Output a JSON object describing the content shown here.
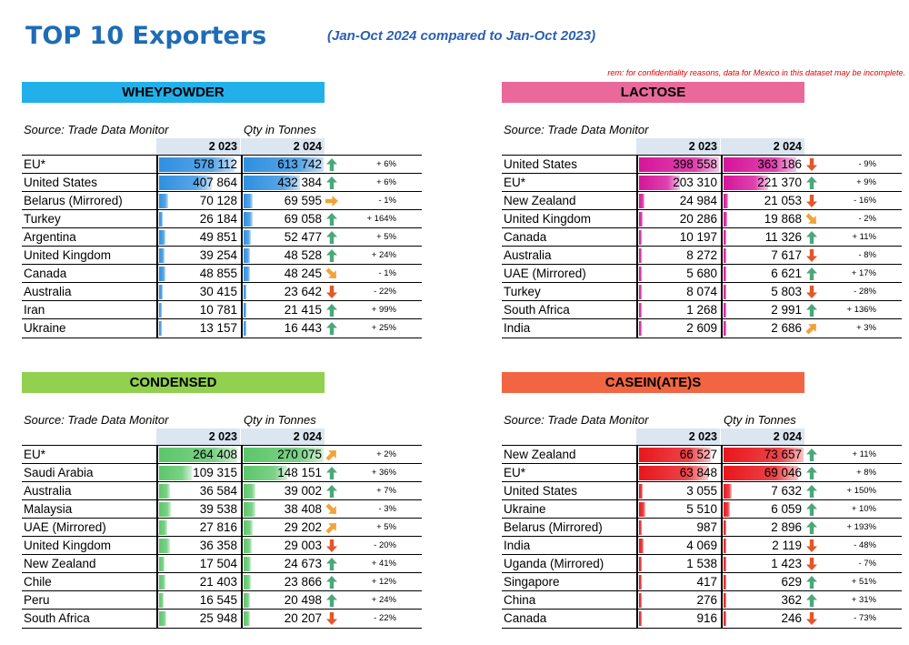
{
  "title": "TOP 10 Exporters",
  "subtitle": "(Jan-Oct 2024 compared to Jan-Oct 2023)",
  "rem": "rem:  for confidentiality reasons, data for Mexico in this dataset may be incomplete.",
  "chart_data": [
    {
      "type": "table",
      "title": "WHEYPOWDER",
      "source": "Source: Trade Data Monitor",
      "unit": "Qty in Tonnes",
      "header_color": "#22b0ea",
      "bar_color": "#2f8fe0",
      "years": [
        "2 023",
        "2 024"
      ],
      "rows": [
        {
          "country": "EU*",
          "v2023": 578112,
          "v2024": 613742,
          "l2023": "578 112",
          "l2024": "613 742",
          "trend": "up",
          "change": "+ 6%"
        },
        {
          "country": "United States",
          "v2023": 407864,
          "v2024": 432384,
          "l2023": "407 864",
          "l2024": "432 384",
          "trend": "up",
          "change": "+ 6%"
        },
        {
          "country": "Belarus (Mirrored)",
          "v2023": 70128,
          "v2024": 69595,
          "l2023": "70 128",
          "l2024": "69 595",
          "trend": "flat",
          "change": "- 1%"
        },
        {
          "country": "Turkey",
          "v2023": 26184,
          "v2024": 69058,
          "l2023": "26 184",
          "l2024": "69 058",
          "trend": "up",
          "change": "+ 164%"
        },
        {
          "country": "Argentina",
          "v2023": 49851,
          "v2024": 52477,
          "l2023": "49 851",
          "l2024": "52 477",
          "trend": "up",
          "change": "+ 5%"
        },
        {
          "country": "United Kingdom",
          "v2023": 39254,
          "v2024": 48528,
          "l2023": "39 254",
          "l2024": "48 528",
          "trend": "up",
          "change": "+ 24%"
        },
        {
          "country": "Canada",
          "v2023": 48855,
          "v2024": 48245,
          "l2023": "48 855",
          "l2024": "48 245",
          "trend": "downslight",
          "change": "- 1%"
        },
        {
          "country": "Australia",
          "v2023": 30415,
          "v2024": 23642,
          "l2023": "30 415",
          "l2024": "23 642",
          "trend": "down",
          "change": "- 22%"
        },
        {
          "country": "Iran",
          "v2023": 10781,
          "v2024": 21415,
          "l2023": "10 781",
          "l2024": "21 415",
          "trend": "up",
          "change": "+ 99%"
        },
        {
          "country": "Ukraine",
          "v2023": 13157,
          "v2024": 16443,
          "l2023": "13 157",
          "l2024": "16 443",
          "trend": "up",
          "change": "+ 25%"
        }
      ]
    },
    {
      "type": "table",
      "title": "LACTOSE",
      "source": "Source: Trade Data Monitor",
      "unit": "",
      "header_color": "#e8699a",
      "bar_color": "#d6149a",
      "years": [
        "2 023",
        "2 024"
      ],
      "rows": [
        {
          "country": "United States",
          "v2023": 398558,
          "v2024": 363186,
          "l2023": "398 558",
          "l2024": "363 186",
          "trend": "down",
          "change": "- 9%"
        },
        {
          "country": "EU*",
          "v2023": 203310,
          "v2024": 221370,
          "l2023": "203 310",
          "l2024": "221 370",
          "trend": "up",
          "change": "+ 9%"
        },
        {
          "country": "New Zealand",
          "v2023": 24984,
          "v2024": 21053,
          "l2023": "24 984",
          "l2024": "21 053",
          "trend": "down",
          "change": "- 16%"
        },
        {
          "country": "United Kingdom",
          "v2023": 20286,
          "v2024": 19868,
          "l2023": "20 286",
          "l2024": "19 868",
          "trend": "downslight",
          "change": "- 2%"
        },
        {
          "country": "Canada",
          "v2023": 10197,
          "v2024": 11326,
          "l2023": "10 197",
          "l2024": "11 326",
          "trend": "up",
          "change": "+ 11%"
        },
        {
          "country": "Australia",
          "v2023": 8272,
          "v2024": 7617,
          "l2023": "8 272",
          "l2024": "7 617",
          "trend": "down",
          "change": "- 8%"
        },
        {
          "country": "UAE (Mirrored)",
          "v2023": 5680,
          "v2024": 6621,
          "l2023": "5 680",
          "l2024": "6 621",
          "trend": "up",
          "change": "+ 17%"
        },
        {
          "country": "Turkey",
          "v2023": 8074,
          "v2024": 5803,
          "l2023": "8 074",
          "l2024": "5 803",
          "trend": "down",
          "change": "- 28%"
        },
        {
          "country": "South Africa",
          "v2023": 1268,
          "v2024": 2991,
          "l2023": "1 268",
          "l2024": "2 991",
          "trend": "up",
          "change": "+ 136%"
        },
        {
          "country": "India",
          "v2023": 2609,
          "v2024": 2686,
          "l2023": "2 609",
          "l2024": "2 686",
          "trend": "upslight",
          "change": "+ 3%"
        }
      ]
    },
    {
      "type": "table",
      "title": "CONDENSED",
      "source": "Source: Trade Data Monitor",
      "unit": "Qty in Tonnes",
      "header_color": "#92d050",
      "bar_color": "#5cc66a",
      "years": [
        "2 023",
        "2 024"
      ],
      "rows": [
        {
          "country": "EU*",
          "v2023": 264408,
          "v2024": 270075,
          "l2023": "264 408",
          "l2024": "270 075",
          "trend": "upslight",
          "change": "+ 2%"
        },
        {
          "country": "Saudi Arabia",
          "v2023": 109315,
          "v2024": 148151,
          "l2023": "109 315",
          "l2024": "148 151",
          "trend": "up",
          "change": "+ 36%"
        },
        {
          "country": "Australia",
          "v2023": 36584,
          "v2024": 39002,
          "l2023": "36 584",
          "l2024": "39 002",
          "trend": "up",
          "change": "+ 7%"
        },
        {
          "country": "Malaysia",
          "v2023": 39538,
          "v2024": 38408,
          "l2023": "39 538",
          "l2024": "38 408",
          "trend": "downslight",
          "change": "- 3%"
        },
        {
          "country": "UAE (Mirrored)",
          "v2023": 27816,
          "v2024": 29202,
          "l2023": "27 816",
          "l2024": "29 202",
          "trend": "upslight",
          "change": "+ 5%"
        },
        {
          "country": "United Kingdom",
          "v2023": 36358,
          "v2024": 29003,
          "l2023": "36 358",
          "l2024": "29 003",
          "trend": "down",
          "change": "- 20%"
        },
        {
          "country": "New Zealand",
          "v2023": 17504,
          "v2024": 24673,
          "l2023": "17 504",
          "l2024": "24 673",
          "trend": "up",
          "change": "+ 41%"
        },
        {
          "country": "Chile",
          "v2023": 21403,
          "v2024": 23866,
          "l2023": "21 403",
          "l2024": "23 866",
          "trend": "up",
          "change": "+ 12%"
        },
        {
          "country": "Peru",
          "v2023": 16545,
          "v2024": 20498,
          "l2023": "16 545",
          "l2024": "20 498",
          "trend": "up",
          "change": "+ 24%"
        },
        {
          "country": "South Africa",
          "v2023": 25948,
          "v2024": 20207,
          "l2023": "25 948",
          "l2024": "20 207",
          "trend": "down",
          "change": "- 22%"
        }
      ]
    },
    {
      "type": "table",
      "title": "CASEIN(ATE)S",
      "source": "Source: Trade Data Monitor",
      "unit": "Qty in Tonnes",
      "header_color": "#f26542",
      "bar_color": "#e8161c",
      "years": [
        "2 023",
        "2 024"
      ],
      "rows": [
        {
          "country": "New Zealand",
          "v2023": 66527,
          "v2024": 73657,
          "l2023": "66 527",
          "l2024": "73 657",
          "trend": "up",
          "change": "+ 11%"
        },
        {
          "country": "EU*",
          "v2023": 63848,
          "v2024": 69046,
          "l2023": "63 848",
          "l2024": "69 046",
          "trend": "up",
          "change": "+ 8%"
        },
        {
          "country": "United States",
          "v2023": 3055,
          "v2024": 7632,
          "l2023": "3 055",
          "l2024": "7 632",
          "trend": "up",
          "change": "+ 150%"
        },
        {
          "country": "Ukraine",
          "v2023": 5510,
          "v2024": 6059,
          "l2023": "5 510",
          "l2024": "6 059",
          "trend": "up",
          "change": "+ 10%"
        },
        {
          "country": "Belarus (Mirrored)",
          "v2023": 987,
          "v2024": 2896,
          "l2023": "987",
          "l2024": "2 896",
          "trend": "up",
          "change": "+ 193%"
        },
        {
          "country": "India",
          "v2023": 4069,
          "v2024": 2119,
          "l2023": "4 069",
          "l2024": "2 119",
          "trend": "down",
          "change": "- 48%"
        },
        {
          "country": "Uganda (Mirrored)",
          "v2023": 1538,
          "v2024": 1423,
          "l2023": "1 538",
          "l2024": "1 423",
          "trend": "down",
          "change": "- 7%"
        },
        {
          "country": "Singapore",
          "v2023": 417,
          "v2024": 629,
          "l2023": "417",
          "l2024": "629",
          "trend": "up",
          "change": "+ 51%"
        },
        {
          "country": "China",
          "v2023": 276,
          "v2024": 362,
          "l2023": "276",
          "l2024": "362",
          "trend": "up",
          "change": "+ 31%"
        },
        {
          "country": "Canada",
          "v2023": 916,
          "v2024": 246,
          "l2023": "916",
          "l2024": "246",
          "trend": "down",
          "change": "- 73%"
        }
      ]
    }
  ]
}
